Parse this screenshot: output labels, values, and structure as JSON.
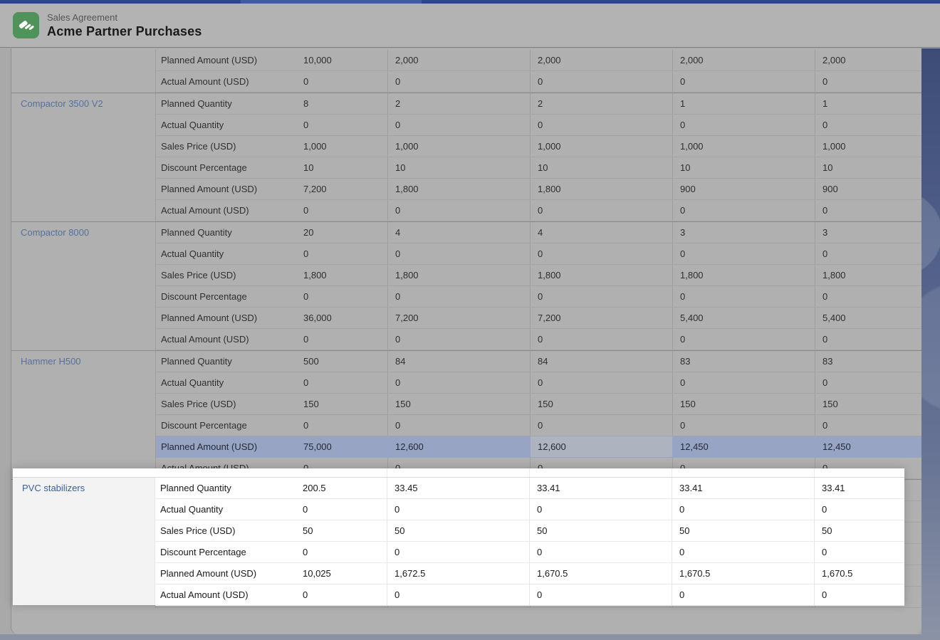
{
  "header": {
    "record_type": "Sales Agreement",
    "title": "Acme Partner Purchases"
  },
  "colors": {
    "accent_green": "#4f935a",
    "topbar_navy": "#2b4887",
    "highlight_row": "#97a4c3",
    "focused_cell": "#adb3bf",
    "link_muted": "#54719f",
    "link_bright": "#3a5f9e",
    "page_gray": "#a9a9a9",
    "spotlight_white": "#ffffff"
  },
  "table": {
    "groups": [
      {
        "product": "",
        "partial": true,
        "rows": [
          {
            "label": "Planned Amount (USD)",
            "values": [
              "10,000",
              "2,000",
              "2,000",
              "2,000",
              "2,000"
            ]
          },
          {
            "label": "Actual Amount (USD)",
            "values": [
              "0",
              "0",
              "0",
              "0",
              "0"
            ]
          }
        ]
      },
      {
        "product": "Compactor 3500 V2",
        "rows": [
          {
            "label": "Planned Quantity",
            "values": [
              "8",
              "2",
              "2",
              "1",
              "1"
            ]
          },
          {
            "label": "Actual Quantity",
            "values": [
              "0",
              "0",
              "0",
              "0",
              "0"
            ]
          },
          {
            "label": "Sales Price (USD)",
            "values": [
              "1,000",
              "1,000",
              "1,000",
              "1,000",
              "1,000"
            ]
          },
          {
            "label": "Discount Percentage",
            "values": [
              "10",
              "10",
              "10",
              "10",
              "10"
            ]
          },
          {
            "label": "Planned Amount (USD)",
            "values": [
              "7,200",
              "1,800",
              "1,800",
              "900",
              "900"
            ]
          },
          {
            "label": "Actual Amount (USD)",
            "values": [
              "0",
              "0",
              "0",
              "0",
              "0"
            ]
          }
        ]
      },
      {
        "product": "Compactor 8000",
        "rows": [
          {
            "label": "Planned Quantity",
            "values": [
              "20",
              "4",
              "4",
              "3",
              "3"
            ]
          },
          {
            "label": "Actual Quantity",
            "values": [
              "0",
              "0",
              "0",
              "0",
              "0"
            ]
          },
          {
            "label": "Sales Price (USD)",
            "values": [
              "1,800",
              "1,800",
              "1,800",
              "1,800",
              "1,800"
            ]
          },
          {
            "label": "Discount Percentage",
            "values": [
              "0",
              "0",
              "0",
              "0",
              "0"
            ]
          },
          {
            "label": "Planned Amount (USD)",
            "values": [
              "36,000",
              "7,200",
              "7,200",
              "5,400",
              "5,400"
            ]
          },
          {
            "label": "Actual Amount (USD)",
            "values": [
              "0",
              "0",
              "0",
              "0",
              "0"
            ]
          }
        ]
      },
      {
        "product": "Hammer H500",
        "rows": [
          {
            "label": "Planned Quantity",
            "values": [
              "500",
              "84",
              "84",
              "83",
              "83"
            ]
          },
          {
            "label": "Actual Quantity",
            "values": [
              "0",
              "0",
              "0",
              "0",
              "0"
            ]
          },
          {
            "label": "Sales Price (USD)",
            "values": [
              "150",
              "150",
              "150",
              "150",
              "150"
            ]
          },
          {
            "label": "Discount Percentage",
            "values": [
              "0",
              "0",
              "0",
              "0",
              "0"
            ]
          },
          {
            "label": "Planned Amount (USD)",
            "values": [
              "75,000",
              "12,600",
              "12,600",
              "12,450",
              "12,450"
            ],
            "highlighted": true,
            "focused_value_index": 2
          },
          {
            "label": "Actual Amount (USD)",
            "values": [
              "0",
              "0",
              "0",
              "0",
              "0"
            ]
          }
        ]
      },
      {
        "product": "PVC stabilizers",
        "spotlight": true,
        "rows": [
          {
            "label": "Planned Quantity",
            "values": [
              "200.5",
              "33.45",
              "33.41",
              "33.41",
              "33.41"
            ]
          },
          {
            "label": "Actual Quantity",
            "values": [
              "0",
              "0",
              "0",
              "0",
              "0"
            ]
          },
          {
            "label": "Sales Price (USD)",
            "values": [
              "50",
              "50",
              "50",
              "50",
              "50"
            ]
          },
          {
            "label": "Discount Percentage",
            "values": [
              "0",
              "0",
              "0",
              "0",
              "0"
            ]
          },
          {
            "label": "Planned Amount (USD)",
            "values": [
              "10,025",
              "1,672.5",
              "1,670.5",
              "1,670.5",
              "1,670.5"
            ]
          },
          {
            "label": "Actual Amount (USD)",
            "values": [
              "0",
              "0",
              "0",
              "0",
              "0"
            ]
          }
        ]
      }
    ]
  }
}
